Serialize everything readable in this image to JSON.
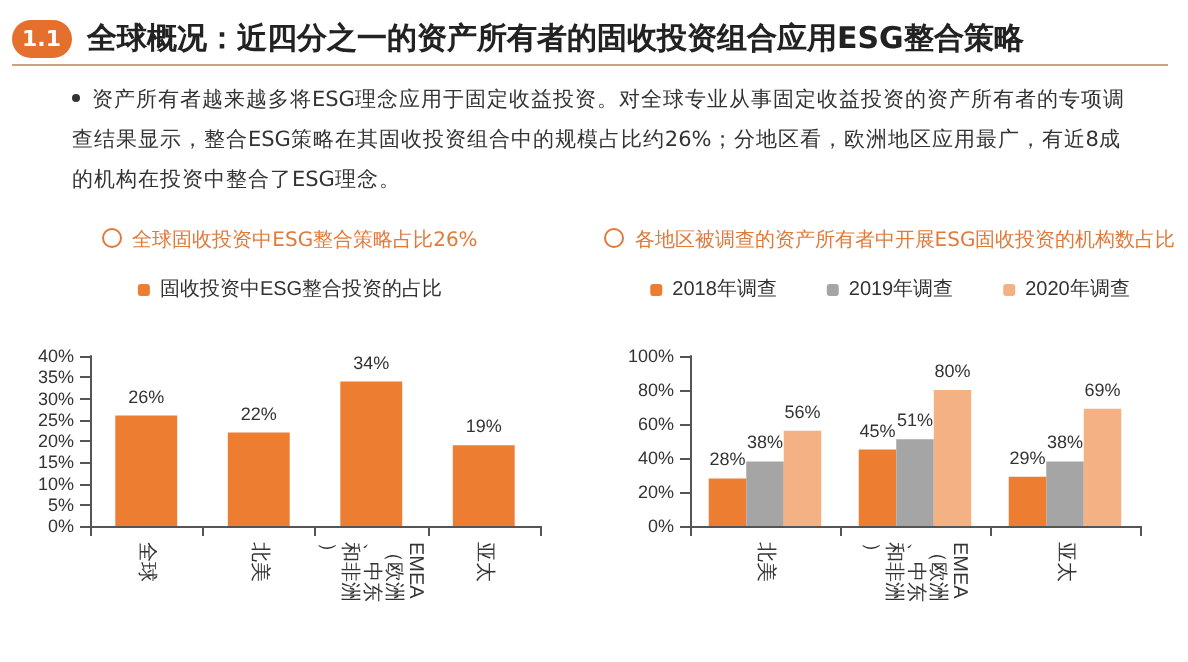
{
  "chart_data": [
    {
      "type": "bar",
      "title": "全球固收投资中ESG整合策略占比26%",
      "annotations": [
        "1.1",
        "全球概况：近四分之一的资产所有者的固收投资组合应用ESG整合策略",
        "资产所有者越来越多将ESG理念应用于固定收益投资。对全球专业从事固定收益投资的资产所有者的专项调查结果显示，整合ESG策略在其固收投资组合中的规模占比约26%；分地区看，欧洲地区应用最广，有近8成的机构在投资中整合了ESG理念。"
      ],
      "categories": [
        "全球",
        "北美",
        "EMEA（欧洲、中东和非洲）",
        "亚太"
      ],
      "series": [
        {
          "name": "固收投资中ESG整合投资的占比",
          "color": "#ed7d31",
          "values": [
            26,
            22,
            34,
            19
          ],
          "value_labels": [
            "26%",
            "22%",
            "34%",
            "19%"
          ]
        }
      ],
      "ylim": [
        0,
        40
      ],
      "yticks": [
        {
          "value": 0,
          "label": "0%"
        },
        {
          "value": 5,
          "label": "5%"
        },
        {
          "value": 10,
          "label": "10%"
        },
        {
          "value": 15,
          "label": "15%"
        },
        {
          "value": 20,
          "label": "20%"
        },
        {
          "value": 25,
          "label": "25%"
        },
        {
          "value": 30,
          "label": "30%"
        },
        {
          "value": 35,
          "label": "35%"
        },
        {
          "value": 40,
          "label": "40%"
        }
      ],
      "grid": false,
      "legend": "top"
    },
    {
      "type": "bar",
      "title": "各地区被调查的资产所有者中开展ESG固收投资的机构数占比",
      "categories": [
        "北美",
        "EMEA（欧洲、中东和非洲）",
        "亚太"
      ],
      "series": [
        {
          "name": "2018年调查",
          "color": "#ed7d31",
          "values": [
            28,
            45,
            29
          ],
          "value_labels": [
            "28%",
            "45%",
            "29%"
          ]
        },
        {
          "name": "2019年调查",
          "color": "#a5a5a5",
          "values": [
            38,
            51,
            38
          ],
          "value_labels": [
            "38%",
            "51%",
            "38%"
          ]
        },
        {
          "name": "2020年调查",
          "color": "#f4b183",
          "values": [
            56,
            80,
            69
          ],
          "value_labels": [
            "56%",
            "80%",
            "69%"
          ]
        }
      ],
      "ylim": [
        0,
        100
      ],
      "yticks": [
        {
          "value": 0,
          "label": "0%"
        },
        {
          "value": 20,
          "label": "20%"
        },
        {
          "value": 40,
          "label": "40%"
        },
        {
          "value": 60,
          "label": "60%"
        },
        {
          "value": 80,
          "label": "80%"
        },
        {
          "value": 100,
          "label": "100%"
        }
      ],
      "grid": false,
      "legend": "top"
    }
  ]
}
